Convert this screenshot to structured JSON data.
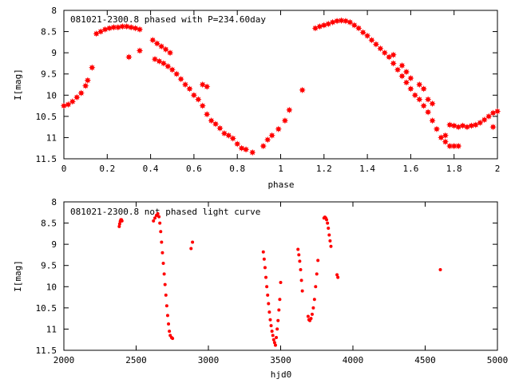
{
  "colors": {
    "marker": "#ff0000",
    "axis": "#000000",
    "background": "#ffffff"
  },
  "chart_data": [
    {
      "type": "scatter",
      "title": "081021-2300.8 phased with P=234.60day",
      "xlabel": "phase",
      "ylabel": "I[mag]",
      "xlim": [
        0,
        2
      ],
      "ylim": [
        8,
        11.5
      ],
      "y_inverted": true,
      "grid": false,
      "x_ticks": [
        "0",
        "0.2",
        "0.4",
        "0.6",
        "0.8",
        "1",
        "1.2",
        "1.4",
        "1.6",
        "1.8",
        "2"
      ],
      "y_ticks": [
        "8",
        "8.5",
        "9",
        "9.5",
        "10",
        "10.5",
        "11",
        "11.5"
      ],
      "marker": "filled-star",
      "points": [
        [
          0.0,
          10.25
        ],
        [
          0.02,
          10.22
        ],
        [
          0.04,
          10.15
        ],
        [
          0.06,
          10.05
        ],
        [
          0.08,
          9.95
        ],
        [
          0.1,
          9.78
        ],
        [
          0.11,
          9.65
        ],
        [
          0.13,
          9.35
        ],
        [
          0.15,
          8.55
        ],
        [
          0.17,
          8.5
        ],
        [
          0.19,
          8.45
        ],
        [
          0.21,
          8.42
        ],
        [
          0.23,
          8.4
        ],
        [
          0.25,
          8.4
        ],
        [
          0.27,
          8.38
        ],
        [
          0.29,
          8.38
        ],
        [
          0.31,
          8.4
        ],
        [
          0.33,
          8.42
        ],
        [
          0.35,
          8.45
        ],
        [
          0.3,
          9.1
        ],
        [
          0.35,
          8.95
        ],
        [
          0.41,
          8.7
        ],
        [
          0.43,
          8.78
        ],
        [
          0.45,
          8.85
        ],
        [
          0.47,
          8.92
        ],
        [
          0.49,
          9.0
        ],
        [
          0.42,
          9.15
        ],
        [
          0.44,
          9.2
        ],
        [
          0.46,
          9.25
        ],
        [
          0.48,
          9.32
        ],
        [
          0.5,
          9.4
        ],
        [
          0.52,
          9.5
        ],
        [
          0.54,
          9.62
        ],
        [
          0.56,
          9.75
        ],
        [
          0.58,
          9.85
        ],
        [
          0.6,
          10.0
        ],
        [
          0.62,
          10.1
        ],
        [
          0.64,
          10.25
        ],
        [
          0.66,
          10.45
        ],
        [
          0.68,
          10.6
        ],
        [
          0.7,
          10.68
        ],
        [
          0.72,
          10.78
        ],
        [
          0.74,
          10.9
        ],
        [
          0.76,
          10.95
        ],
        [
          0.78,
          11.02
        ],
        [
          0.8,
          11.15
        ],
        [
          0.82,
          11.25
        ],
        [
          0.84,
          11.28
        ],
        [
          0.87,
          11.35
        ],
        [
          0.64,
          9.75
        ],
        [
          0.66,
          9.8
        ],
        [
          0.92,
          11.2
        ],
        [
          0.94,
          11.05
        ],
        [
          0.96,
          10.95
        ],
        [
          0.99,
          10.8
        ],
        [
          1.02,
          10.6
        ],
        [
          1.04,
          10.35
        ],
        [
          1.1,
          9.88
        ],
        [
          1.16,
          8.42
        ],
        [
          1.18,
          8.38
        ],
        [
          1.2,
          8.35
        ],
        [
          1.22,
          8.32
        ],
        [
          1.24,
          8.28
        ],
        [
          1.26,
          8.25
        ],
        [
          1.28,
          8.24
        ],
        [
          1.3,
          8.25
        ],
        [
          1.32,
          8.28
        ],
        [
          1.34,
          8.35
        ],
        [
          1.36,
          8.42
        ],
        [
          1.38,
          8.52
        ],
        [
          1.4,
          8.6
        ],
        [
          1.42,
          8.7
        ],
        [
          1.44,
          8.8
        ],
        [
          1.46,
          8.9
        ],
        [
          1.48,
          9.0
        ],
        [
          1.5,
          9.1
        ],
        [
          1.52,
          9.25
        ],
        [
          1.54,
          9.4
        ],
        [
          1.56,
          9.55
        ],
        [
          1.58,
          9.7
        ],
        [
          1.6,
          9.85
        ],
        [
          1.62,
          10.0
        ],
        [
          1.64,
          10.1
        ],
        [
          1.66,
          10.25
        ],
        [
          1.68,
          10.4
        ],
        [
          1.7,
          10.6
        ],
        [
          1.72,
          10.8
        ],
        [
          1.74,
          11.0
        ],
        [
          1.76,
          11.1
        ],
        [
          1.78,
          11.2
        ],
        [
          1.8,
          11.2
        ],
        [
          1.52,
          9.05
        ],
        [
          1.56,
          9.3
        ],
        [
          1.58,
          9.45
        ],
        [
          1.6,
          9.6
        ],
        [
          1.64,
          9.75
        ],
        [
          1.66,
          9.85
        ],
        [
          1.68,
          10.1
        ],
        [
          1.7,
          10.2
        ],
        [
          1.76,
          10.95
        ],
        [
          1.78,
          10.7
        ],
        [
          1.8,
          10.72
        ],
        [
          1.82,
          10.75
        ],
        [
          1.84,
          10.72
        ],
        [
          1.86,
          10.75
        ],
        [
          1.88,
          10.72
        ],
        [
          1.9,
          10.7
        ],
        [
          1.92,
          10.65
        ],
        [
          1.94,
          10.58
        ],
        [
          1.96,
          10.5
        ],
        [
          1.98,
          10.42
        ],
        [
          2.0,
          10.38
        ],
        [
          1.98,
          10.75
        ],
        [
          1.82,
          11.2
        ]
      ]
    },
    {
      "type": "scatter",
      "title": "081021-2300.8 not phased light curve",
      "xlabel": "hjd0",
      "ylabel": "I[mag]",
      "xlim": [
        2000,
        5000
      ],
      "ylim": [
        8,
        11.5
      ],
      "y_inverted": true,
      "grid": false,
      "x_ticks": [
        "2000",
        "2500",
        "3000",
        "3500",
        "4000",
        "4500",
        "5000"
      ],
      "y_ticks": [
        "8",
        "8.5",
        "9",
        "9.5",
        "10",
        "10.5",
        "11",
        "11.5"
      ],
      "marker": "dot",
      "points": [
        [
          2383,
          8.58
        ],
        [
          2386,
          8.52
        ],
        [
          2390,
          8.46
        ],
        [
          2394,
          8.42
        ],
        [
          2398,
          8.42
        ],
        [
          2402,
          8.45
        ],
        [
          2620,
          8.45
        ],
        [
          2630,
          8.38
        ],
        [
          2640,
          8.32
        ],
        [
          2650,
          8.28
        ],
        [
          2658,
          8.35
        ],
        [
          2664,
          8.5
        ],
        [
          2670,
          8.7
        ],
        [
          2676,
          8.95
        ],
        [
          2682,
          9.2
        ],
        [
          2688,
          9.45
        ],
        [
          2694,
          9.7
        ],
        [
          2700,
          9.95
        ],
        [
          2706,
          10.2
        ],
        [
          2712,
          10.45
        ],
        [
          2718,
          10.68
        ],
        [
          2724,
          10.88
        ],
        [
          2730,
          11.05
        ],
        [
          2736,
          11.15
        ],
        [
          2745,
          11.2
        ],
        [
          2752,
          11.22
        ],
        [
          2880,
          9.1
        ],
        [
          2890,
          8.95
        ],
        [
          3380,
          9.18
        ],
        [
          3386,
          9.35
        ],
        [
          3392,
          9.55
        ],
        [
          3398,
          9.78
        ],
        [
          3404,
          10.0
        ],
        [
          3410,
          10.2
        ],
        [
          3416,
          10.4
        ],
        [
          3422,
          10.6
        ],
        [
          3428,
          10.78
        ],
        [
          3434,
          10.92
        ],
        [
          3440,
          11.05
        ],
        [
          3446,
          11.15
        ],
        [
          3452,
          11.25
        ],
        [
          3458,
          11.32
        ],
        [
          3464,
          11.38
        ],
        [
          3470,
          11.2
        ],
        [
          3476,
          11.0
        ],
        [
          3482,
          10.8
        ],
        [
          3488,
          10.55
        ],
        [
          3494,
          10.3
        ],
        [
          3500,
          9.9
        ],
        [
          3620,
          9.12
        ],
        [
          3626,
          9.25
        ],
        [
          3632,
          9.4
        ],
        [
          3638,
          9.6
        ],
        [
          3644,
          9.85
        ],
        [
          3650,
          10.1
        ],
        [
          3690,
          10.7
        ],
        [
          3696,
          10.78
        ],
        [
          3702,
          10.8
        ],
        [
          3710,
          10.75
        ],
        [
          3718,
          10.65
        ],
        [
          3726,
          10.5
        ],
        [
          3734,
          10.3
        ],
        [
          3742,
          10.0
        ],
        [
          3750,
          9.7
        ],
        [
          3758,
          9.38
        ],
        [
          3800,
          8.38
        ],
        [
          3806,
          8.36
        ],
        [
          3812,
          8.38
        ],
        [
          3818,
          8.42
        ],
        [
          3824,
          8.5
        ],
        [
          3830,
          8.62
        ],
        [
          3836,
          8.78
        ],
        [
          3842,
          8.92
        ],
        [
          3848,
          9.05
        ],
        [
          3890,
          9.72
        ],
        [
          3896,
          9.78
        ],
        [
          4605,
          9.6
        ]
      ]
    }
  ]
}
